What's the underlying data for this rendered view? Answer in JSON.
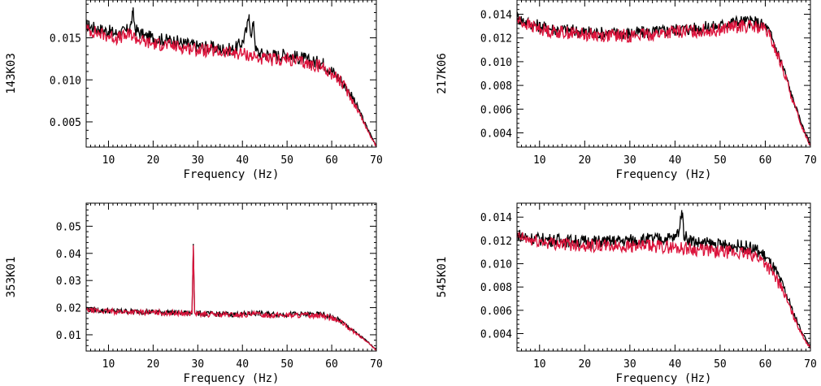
{
  "colors": {
    "series_black": "#000000",
    "series_red": "#dc143c",
    "axis": "#000000"
  },
  "chart_data": [
    {
      "type": "line",
      "ylabel": "143K03",
      "xlabel": "Frequency (Hz)",
      "xlim": [
        5,
        70
      ],
      "ylim": [
        0.002,
        0.0195
      ],
      "xticks": [
        10,
        20,
        30,
        40,
        50,
        60,
        70
      ],
      "yticks": [
        0.005,
        0.01,
        0.015
      ],
      "ytick_labels": [
        "0.005",
        "0.010",
        "0.015"
      ],
      "series": [
        {
          "color": "black",
          "x": [
            5,
            8,
            10,
            12,
            14,
            15,
            15.5,
            16,
            18,
            20,
            22,
            25,
            28,
            30,
            32,
            35,
            38,
            40,
            41,
            41.5,
            42,
            42.5,
            43,
            44,
            46,
            48,
            50,
            52,
            54,
            55,
            57,
            58,
            60,
            62,
            64,
            66,
            68,
            70
          ],
          "y": [
            0.0165,
            0.016,
            0.0158,
            0.0155,
            0.0158,
            0.0165,
            0.018,
            0.016,
            0.0152,
            0.015,
            0.0148,
            0.0146,
            0.0142,
            0.014,
            0.0139,
            0.0137,
            0.0136,
            0.0145,
            0.016,
            0.0178,
            0.015,
            0.017,
            0.0135,
            0.0131,
            0.013,
            0.0129,
            0.0131,
            0.0127,
            0.0125,
            0.0122,
            0.0121,
            0.012,
            0.0111,
            0.01,
            0.0085,
            0.0065,
            0.0042,
            0.0022
          ]
        },
        {
          "color": "red",
          "x": [
            5,
            8,
            10,
            12,
            14,
            15,
            16,
            18,
            20,
            22,
            25,
            28,
            30,
            32,
            35,
            38,
            40,
            42,
            43,
            44,
            46,
            48,
            50,
            52,
            54,
            55,
            57,
            58,
            60,
            62,
            64,
            66,
            68,
            70
          ],
          "y": [
            0.016,
            0.0155,
            0.0152,
            0.015,
            0.0152,
            0.0155,
            0.015,
            0.0145,
            0.0143,
            0.0142,
            0.014,
            0.0138,
            0.0136,
            0.0135,
            0.0133,
            0.0132,
            0.0131,
            0.0129,
            0.0127,
            0.0125,
            0.0124,
            0.0124,
            0.0125,
            0.0122,
            0.012,
            0.0118,
            0.0117,
            0.0115,
            0.0108,
            0.0098,
            0.0082,
            0.0063,
            0.004,
            0.0021
          ]
        }
      ]
    },
    {
      "type": "line",
      "ylabel": "217K06",
      "xlabel": "Frequency (Hz)",
      "xlim": [
        5,
        70
      ],
      "ylim": [
        0.0028,
        0.0152
      ],
      "xticks": [
        10,
        20,
        30,
        40,
        50,
        60,
        70
      ],
      "yticks": [
        0.004,
        0.006,
        0.008,
        0.01,
        0.012,
        0.014
      ],
      "ytick_labels": [
        "0.004",
        "0.006",
        "0.008",
        "0.010",
        "0.012",
        "0.014"
      ],
      "series": [
        {
          "color": "black",
          "x": [
            5,
            8,
            10,
            12,
            15,
            18,
            20,
            25,
            30,
            35,
            40,
            45,
            50,
            52,
            55,
            58,
            60,
            61,
            62,
            64,
            66,
            68,
            70
          ],
          "y": [
            0.0137,
            0.0132,
            0.013,
            0.0128,
            0.0127,
            0.0126,
            0.0125,
            0.0124,
            0.0124,
            0.0125,
            0.0127,
            0.0128,
            0.013,
            0.0133,
            0.0134,
            0.0133,
            0.013,
            0.0124,
            0.0115,
            0.0095,
            0.007,
            0.0048,
            0.003
          ]
        },
        {
          "color": "red",
          "x": [
            5,
            8,
            10,
            12,
            15,
            18,
            20,
            25,
            30,
            35,
            40,
            45,
            50,
            52,
            55,
            58,
            60,
            61,
            62,
            64,
            66,
            68,
            70
          ],
          "y": [
            0.0135,
            0.013,
            0.0128,
            0.0126,
            0.0125,
            0.0124,
            0.0123,
            0.0122,
            0.0122,
            0.0123,
            0.0125,
            0.0126,
            0.0127,
            0.0129,
            0.013,
            0.0129,
            0.0127,
            0.0121,
            0.0112,
            0.0093,
            0.0068,
            0.0046,
            0.0029
          ]
        }
      ]
    },
    {
      "type": "line",
      "ylabel": "353K01",
      "xlabel": "Frequency (Hz)",
      "xlim": [
        5,
        70
      ],
      "ylim": [
        0.004,
        0.0585
      ],
      "xticks": [
        10,
        20,
        30,
        40,
        50,
        60,
        70
      ],
      "yticks": [
        0.01,
        0.02,
        0.03,
        0.04,
        0.05
      ],
      "ytick_labels": [
        "0.01",
        "0.02",
        "0.03",
        "0.04",
        "0.05"
      ],
      "series": [
        {
          "color": "black",
          "x": [
            5,
            8,
            10,
            15,
            20,
            25,
            28,
            28.7,
            29,
            29.3,
            30,
            35,
            40,
            43,
            45,
            50,
            55,
            58,
            60,
            62,
            64,
            66,
            68,
            70
          ],
          "y": [
            0.0195,
            0.019,
            0.0188,
            0.0186,
            0.0184,
            0.0182,
            0.018,
            0.018,
            0.0435,
            0.0182,
            0.0178,
            0.0176,
            0.0175,
            0.018,
            0.0176,
            0.0175,
            0.0175,
            0.0174,
            0.0165,
            0.015,
            0.0125,
            0.01,
            0.0075,
            0.0045
          ]
        },
        {
          "color": "red",
          "x": [
            5,
            8,
            10,
            15,
            20,
            25,
            28,
            28.7,
            29,
            29.3,
            30,
            35,
            40,
            43,
            45,
            50,
            55,
            58,
            60,
            62,
            64,
            66,
            68,
            70
          ],
          "y": [
            0.0192,
            0.0188,
            0.0186,
            0.0184,
            0.0182,
            0.018,
            0.0178,
            0.0178,
            0.043,
            0.018,
            0.0176,
            0.0174,
            0.0173,
            0.0176,
            0.0173,
            0.0172,
            0.0172,
            0.017,
            0.0162,
            0.0147,
            0.0122,
            0.0098,
            0.0073,
            0.0043
          ]
        }
      ]
    },
    {
      "type": "line",
      "ylabel": "545K01",
      "xlabel": "Frequency (Hz)",
      "xlim": [
        5,
        70
      ],
      "ylim": [
        0.0025,
        0.0152
      ],
      "xticks": [
        10,
        20,
        30,
        40,
        50,
        60,
        70
      ],
      "yticks": [
        0.004,
        0.006,
        0.008,
        0.01,
        0.012,
        0.014
      ],
      "ytick_labels": [
        "0.004",
        "0.006",
        "0.008",
        "0.010",
        "0.012",
        "0.014"
      ],
      "series": [
        {
          "color": "black",
          "x": [
            5,
            8,
            10,
            15,
            20,
            25,
            30,
            35,
            40,
            41,
            41.5,
            42,
            43,
            45,
            48,
            50,
            55,
            58,
            60,
            62,
            64,
            66,
            68,
            70
          ],
          "y": [
            0.0125,
            0.0122,
            0.0121,
            0.012,
            0.0119,
            0.0119,
            0.012,
            0.0121,
            0.0122,
            0.013,
            0.0146,
            0.0125,
            0.0121,
            0.0118,
            0.0117,
            0.0116,
            0.0115,
            0.0112,
            0.0106,
            0.0095,
            0.008,
            0.006,
            0.0042,
            0.0028
          ]
        },
        {
          "color": "red",
          "x": [
            5,
            8,
            10,
            15,
            20,
            25,
            30,
            35,
            40,
            43,
            45,
            48,
            50,
            55,
            58,
            60,
            62,
            64,
            66,
            68,
            70
          ],
          "y": [
            0.0123,
            0.012,
            0.0119,
            0.0117,
            0.0116,
            0.0115,
            0.0115,
            0.0115,
            0.0114,
            0.0113,
            0.0112,
            0.0111,
            0.011,
            0.0109,
            0.0107,
            0.0101,
            0.009,
            0.0076,
            0.0057,
            0.004,
            0.0027
          ]
        }
      ]
    }
  ]
}
